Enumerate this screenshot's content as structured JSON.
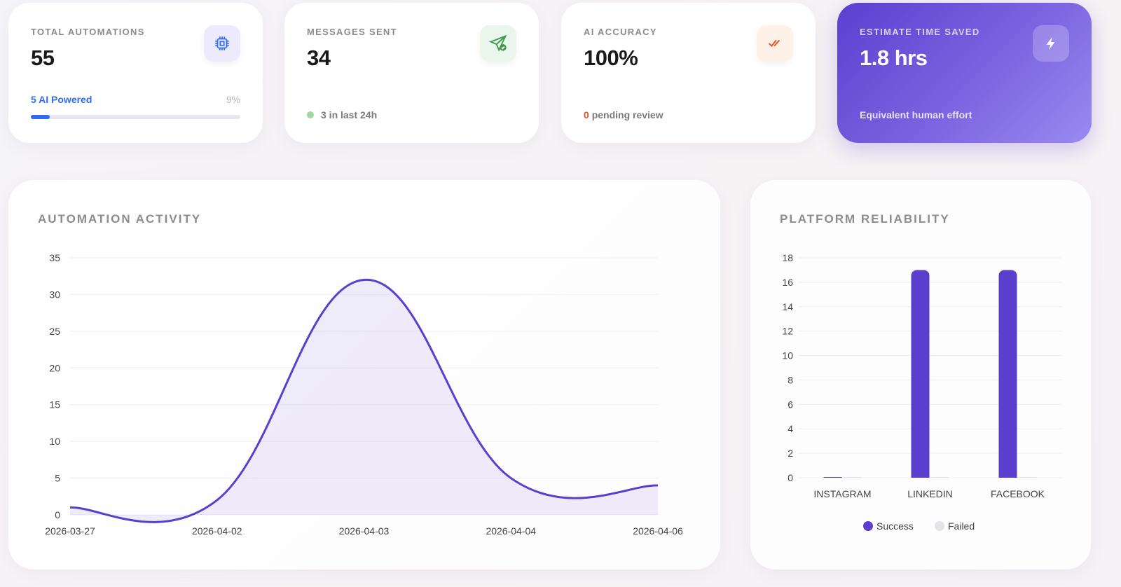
{
  "cards": [
    {
      "label": "TOTAL AUTOMATIONS",
      "value": "55",
      "icon": "cpu-chip-icon",
      "sub": "5 AI Powered",
      "percent_text": "9%",
      "progress": 9
    },
    {
      "label": "MESSAGES SENT",
      "value": "34",
      "icon": "send-check-icon",
      "sub": "3 in last 24h"
    },
    {
      "label": "AI ACCURACY",
      "value": "100%",
      "icon": "double-check-icon",
      "sub_count": "0",
      "sub": "pending review"
    },
    {
      "label": "ESTIMATE TIME SAVED",
      "value": "1.8 hrs",
      "icon": "lightning-bolt-icon",
      "sub": "Equivalent human effort"
    }
  ],
  "colors": {
    "accent": "#5a3fcf",
    "blue": "#2f6cf0",
    "green": "#3a9a4a",
    "orange": "#e0582a",
    "success": "#5a3fcf",
    "failed": "#e4e4e8"
  },
  "chart_data": [
    {
      "type": "line",
      "title": "AUTOMATION ACTIVITY",
      "categories": [
        "2026-03-27",
        "2026-04-02",
        "2026-04-03",
        "2026-04-04",
        "2026-04-06"
      ],
      "values": [
        1,
        2,
        32,
        5,
        4
      ],
      "ylim": [
        0,
        35
      ],
      "yticks": [
        "0",
        "5",
        "10",
        "15",
        "20",
        "25",
        "30",
        "35"
      ],
      "grid": true,
      "fill": true
    },
    {
      "type": "bar",
      "title": "PLATFORM RELIABILITY",
      "categories": [
        "INSTAGRAM",
        "LINKEDIN",
        "FACEBOOK"
      ],
      "series": [
        {
          "name": "Success",
          "values": [
            0,
            17,
            17
          ]
        },
        {
          "name": "Failed",
          "values": [
            0,
            0,
            0
          ]
        }
      ],
      "ylim": [
        0,
        18
      ],
      "yticks": [
        "0",
        "2",
        "4",
        "6",
        "8",
        "10",
        "12",
        "14",
        "16",
        "18"
      ],
      "grid": true,
      "legend": "bottom"
    }
  ]
}
